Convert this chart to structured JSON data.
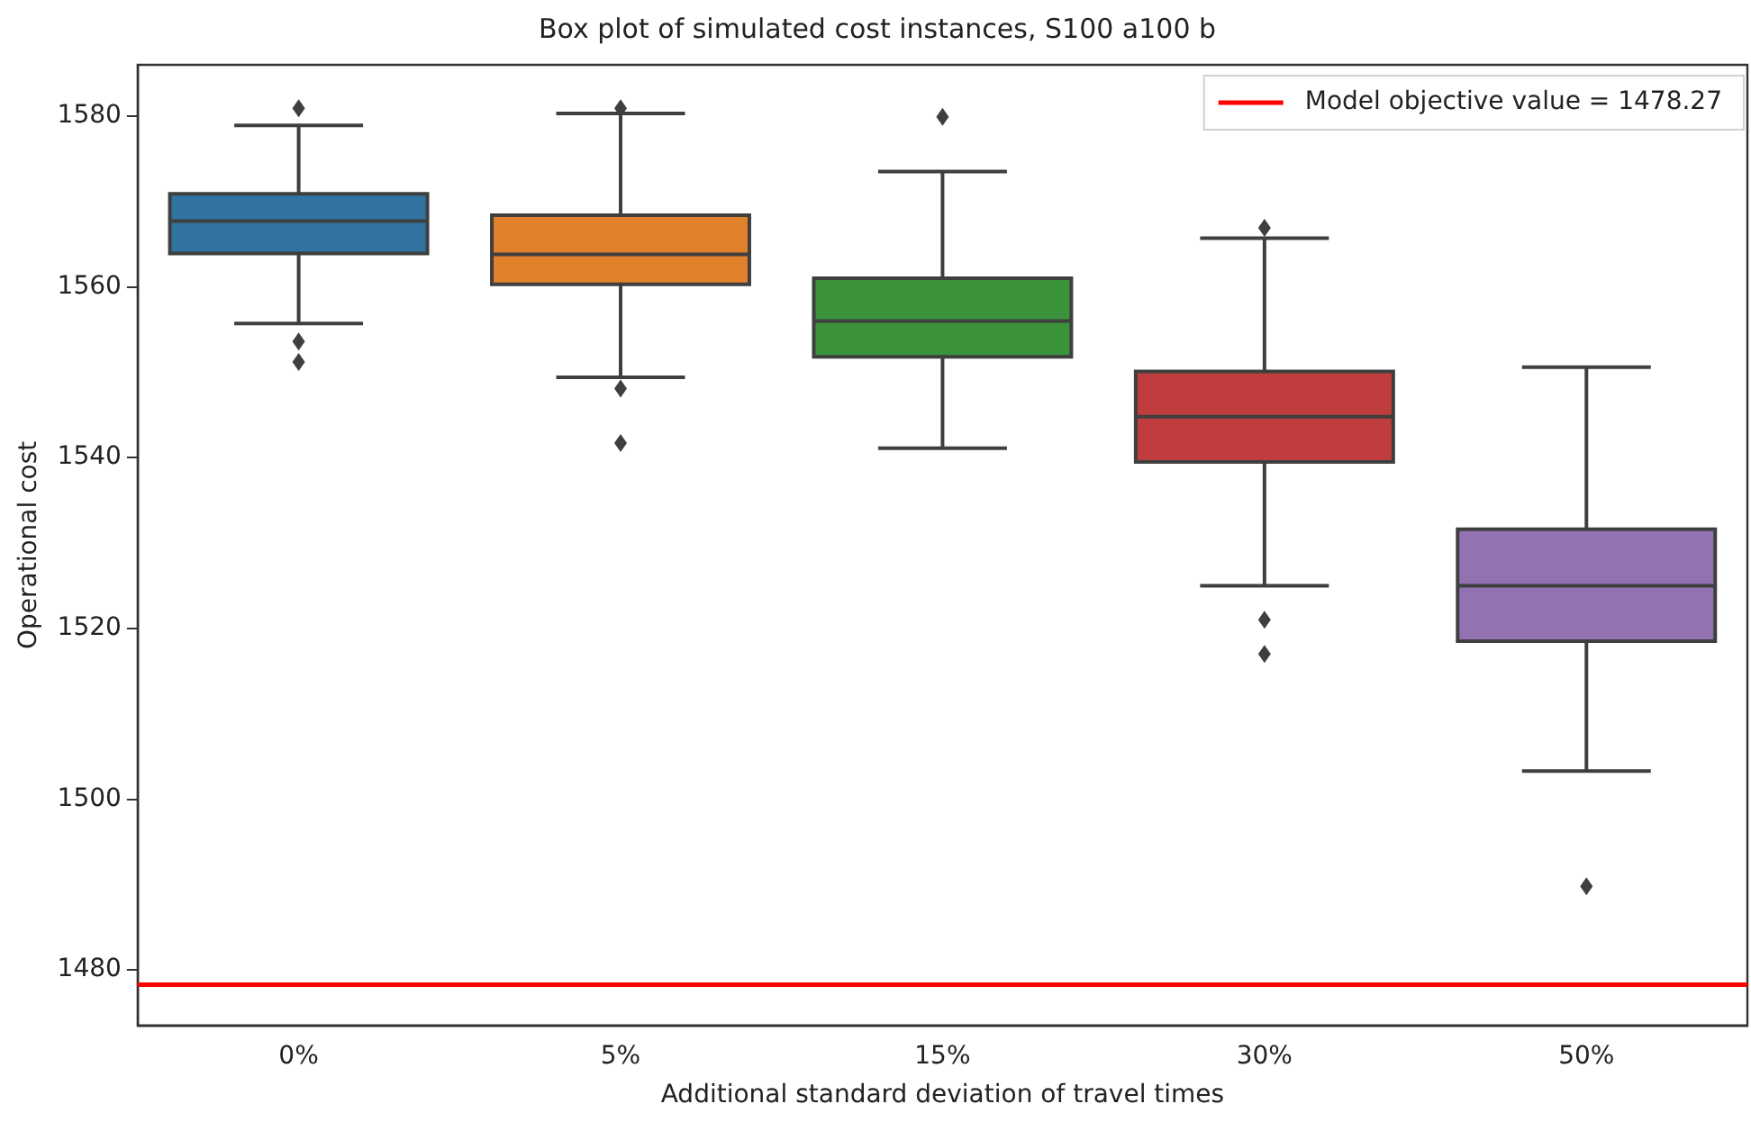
{
  "chart_data": {
    "type": "box",
    "title": "Box plot of simulated cost instances, S100 a100 b",
    "xlabel": "Additional standard deviation of travel times",
    "ylabel": "Operational cost",
    "categories": [
      "0%",
      "5%",
      "15%",
      "30%",
      "50%"
    ],
    "colors": [
      "#3274a1",
      "#e1812c",
      "#3a923a",
      "#c03d3e",
      "#9372b2"
    ],
    "boxes": [
      {
        "low": 1555.7,
        "q1": 1563.9,
        "median": 1567.7,
        "q3": 1570.9,
        "high": 1578.9,
        "outliers": [
          1580.9,
          1553.6,
          1551.2
        ]
      },
      {
        "low": 1549.4,
        "q1": 1560.3,
        "median": 1563.8,
        "q3": 1568.4,
        "high": 1580.3,
        "outliers": [
          1580.9,
          1548.1,
          1541.7
        ]
      },
      {
        "low": 1541.1,
        "q1": 1551.8,
        "median": 1556.0,
        "q3": 1561.0,
        "high": 1573.5,
        "outliers": [
          1579.9
        ]
      },
      {
        "low": 1525.0,
        "q1": 1539.5,
        "median": 1544.8,
        "q3": 1550.1,
        "high": 1565.7,
        "outliers": [
          1566.9,
          1521.0,
          1517.0
        ]
      },
      {
        "low": 1503.3,
        "q1": 1518.5,
        "median": 1525.0,
        "q3": 1531.6,
        "high": 1550.6,
        "outliers": [
          1489.8
        ]
      }
    ],
    "ylim": [
      1473.5,
      1586
    ],
    "yticks": [
      1480,
      1500,
      1520,
      1540,
      1560,
      1580
    ],
    "ref_lines": [
      {
        "axis": "y",
        "value": 1478.27,
        "label": "Model objective value = 1478.27",
        "color": "#ff0000"
      }
    ],
    "legend": "top right",
    "grid": false,
    "marker": "diamond"
  }
}
